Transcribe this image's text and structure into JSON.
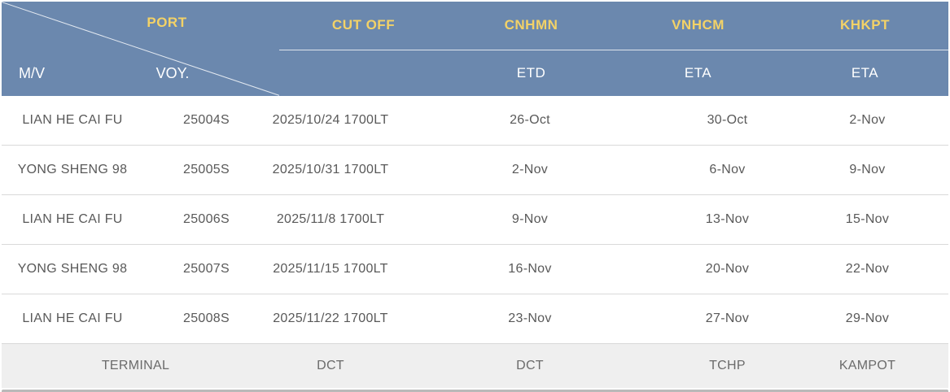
{
  "table": {
    "corner": {
      "port_label": "PORT",
      "mv_label": "M/V",
      "voy_label": "VOY."
    },
    "columns": [
      {
        "label": "CUT OFF",
        "sub": ""
      },
      {
        "label": "CNHMN",
        "sub": "ETD"
      },
      {
        "label": "VNHCM",
        "sub": "ETA"
      },
      {
        "label": "KHKPT",
        "sub": "ETA"
      }
    ],
    "rows": [
      {
        "vessel": "LIAN HE CAI FU",
        "voyage": "25004S",
        "cutoff": "2025/10/24 1700LT",
        "cnhmn_etd": "26-Oct",
        "vnhcm_eta": "30-Oct",
        "khkpt_eta": "2-Nov"
      },
      {
        "vessel": "YONG SHENG 98",
        "voyage": "25005S",
        "cutoff": "2025/10/31 1700LT",
        "cnhmn_etd": "2-Nov",
        "vnhcm_eta": "6-Nov",
        "khkpt_eta": "9-Nov"
      },
      {
        "vessel": "LIAN HE CAI FU",
        "voyage": "25006S",
        "cutoff": "2025/11/8 1700LT",
        "cnhmn_etd": "9-Nov",
        "vnhcm_eta": "13-Nov",
        "khkpt_eta": "15-Nov"
      },
      {
        "vessel": "YONG SHENG 98",
        "voyage": "25007S",
        "cutoff": "2025/11/15 1700LT",
        "cnhmn_etd": "16-Nov",
        "vnhcm_eta": "20-Nov",
        "khkpt_eta": "22-Nov"
      },
      {
        "vessel": "LIAN HE CAI FU",
        "voyage": "25008S",
        "cutoff": "2025/11/22 1700LT",
        "cnhmn_etd": "23-Nov",
        "vnhcm_eta": "27-Nov",
        "khkpt_eta": "29-Nov"
      }
    ],
    "terminal_row": {
      "label": "TERMINAL",
      "cutoff": "DCT",
      "cnhmn": "DCT",
      "vnhcm": "TCHP",
      "khkpt": "KAMPOT"
    }
  },
  "colors": {
    "header_bg": "#6B88AE",
    "header_accent_text": "#F3D267",
    "header_text": "#FFFFFF",
    "body_text": "#595959",
    "row_border": "#D9D9D9",
    "terminal_row_bg": "#EFEFEF",
    "bottom_bar": "#B9B9B9"
  }
}
